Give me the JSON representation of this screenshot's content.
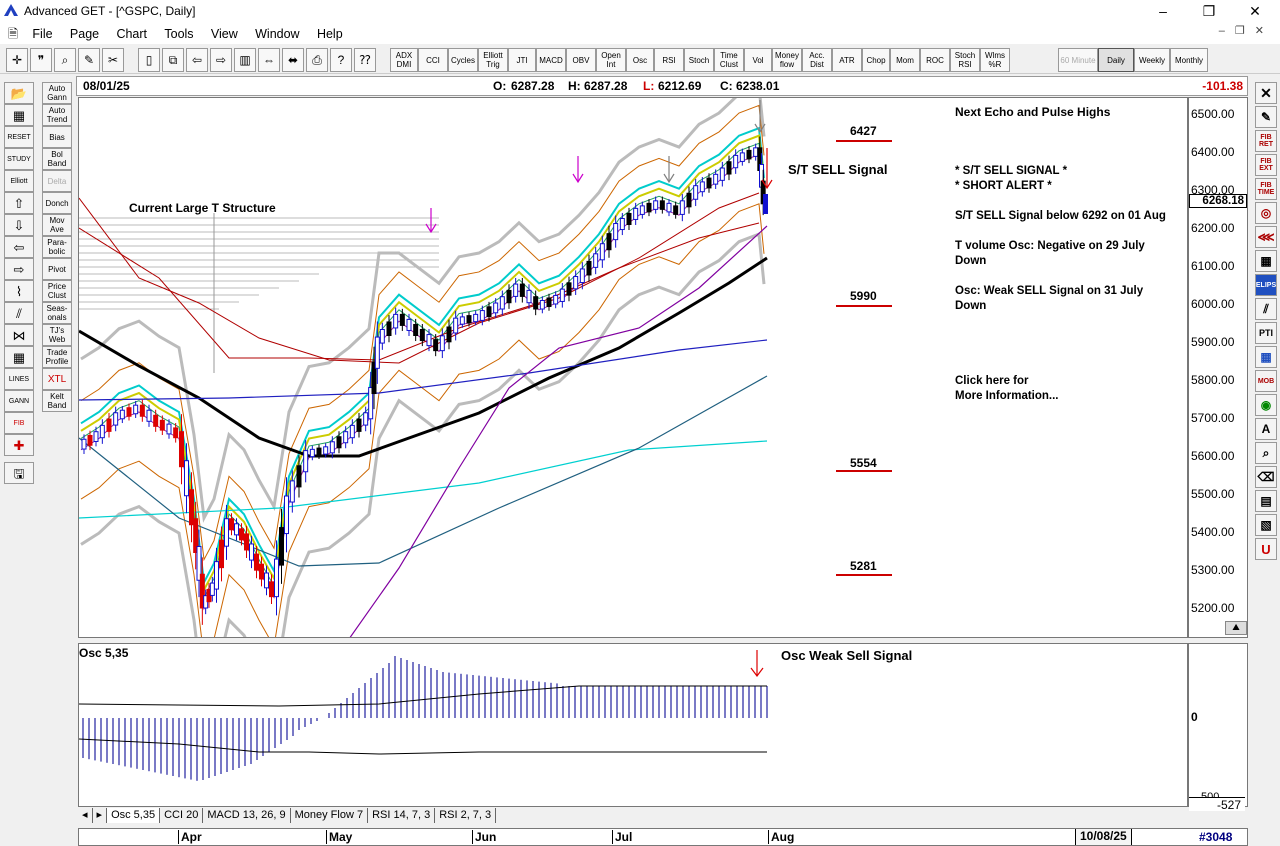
{
  "window": {
    "title": "Advanced GET - [^GSPC, Daily]"
  },
  "menu": [
    "File",
    "Page",
    "Chart",
    "Tools",
    "View",
    "Window",
    "Help"
  ],
  "toolbar": {
    "studies": [
      "ADX DMI",
      "CCI",
      "Cycles",
      "Elliott Trig",
      "JTI",
      "MACD",
      "OBV",
      "Open Int",
      "Osc",
      "RSI",
      "Stoch",
      "Time Clust",
      "Vol",
      "Money flow",
      "Acc. Dist",
      "ATR",
      "Chop",
      "Mom",
      "ROC",
      "Stoch RSI",
      "Wlms %R"
    ],
    "timeframes": [
      "60 Minute",
      "Daily",
      "Weekly",
      "Monthly"
    ],
    "selected_timeframe": "Daily"
  },
  "left_toolbar": [
    "Auto Gann",
    "Auto Trend",
    "Bias",
    "Bol Band",
    "Delta",
    "Donch",
    "Mov Ave",
    "Para-bolic",
    "Pivot",
    "Price Clust",
    "Seas-onals",
    "TJ's Web",
    "Trade Profile",
    "XTL",
    "Kelt Band"
  ],
  "left_icons": [
    "RESET",
    "STUDY",
    "Elliott",
    "LINES",
    "GANN",
    "FIB"
  ],
  "right_toolbar": [
    "FIB RET",
    "FIB EXT",
    "FIB TIME",
    "ELIPS",
    "PTI",
    "MOB"
  ],
  "header": {
    "date": "08/01/25",
    "open_label": "O:",
    "open": "6287.28",
    "high_label": "H:",
    "high": "6287.28",
    "low_label": "L:",
    "low": "6212.69",
    "close_label": "C:",
    "close": "6238.01",
    "change": "-101.38"
  },
  "price_axis": {
    "ticks": [
      "6500.00",
      "6400.00",
      "6300.00",
      "6200.00",
      "6100.00",
      "6000.00",
      "5900.00",
      "5800.00",
      "5700.00",
      "5600.00",
      "5500.00",
      "5400.00",
      "5300.00",
      "5200.00"
    ],
    "current": "6268.18"
  },
  "annotations": {
    "structure": "Current Large T Structure",
    "st_sell": "S/T SELL Signal",
    "levels": [
      "6427",
      "5990",
      "5554",
      "5281"
    ],
    "panel_lines": [
      "Next Echo and Pulse Highs",
      "* S/T SELL SIGNAL *",
      "* SHORT ALERT *",
      "S/T SELL Signal below 6292 on 01 Aug",
      "T volume Osc: Negative on 29 July",
      "Down",
      "Osc: Weak SELL Signal on 31 July",
      "Down",
      "Click here for",
      "More Information..."
    ]
  },
  "osc": {
    "label": "Osc 5,35",
    "signal": "Osc Weak Sell Signal",
    "zero": "0",
    "cut_tick": "500",
    "value": "-527"
  },
  "tabs": [
    "Osc 5,35",
    "CCI 20",
    "MACD 13, 26, 9",
    "Money Flow 7",
    "RSI 14, 7, 3",
    "RSI 2, 7, 3"
  ],
  "active_tab": "Osc 5,35",
  "date_axis": {
    "months": [
      "Apr",
      "May",
      "Jun",
      "Jul",
      "Aug"
    ],
    "end_date": "10/08/25",
    "bar_count": "#3048"
  },
  "colors": {
    "up_bar": "#0000cc",
    "down_bar": "#dd0000",
    "signal": "#dd0000",
    "ma_thick": "#000000"
  }
}
